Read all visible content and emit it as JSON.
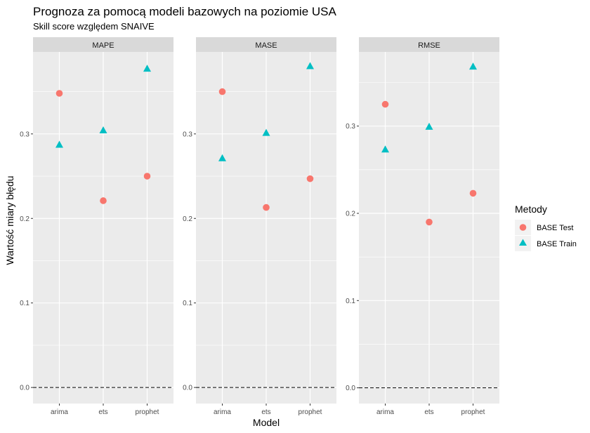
{
  "title": "Prognoza za pomocą modeli bazowych na poziomie USA",
  "subtitle": "Skill score względem SNAIVE",
  "xlabel": "Model",
  "ylabel": "Wartość miary błędu",
  "legend": {
    "title": "Metody",
    "placement": "right",
    "entries": [
      {
        "label": "BASE Test",
        "shape": "circle",
        "color": "#F8766D"
      },
      {
        "label": "BASE Train",
        "shape": "triangle",
        "color": "#00BFC4"
      }
    ]
  },
  "chart_data": {
    "type": "scatter",
    "facets": [
      {
        "name": "MAPE",
        "categories": [
          "arima",
          "ets",
          "prophet"
        ],
        "ylim": [
          -0.019,
          0.397
        ],
        "yticks": [
          0.0,
          0.1,
          0.2,
          0.3
        ],
        "ytick_labels": [
          "0.0",
          "0.1",
          "0.2",
          "0.3"
        ],
        "series": [
          {
            "name": "BASE Test",
            "values": [
              0.348,
              0.221,
              0.25
            ]
          },
          {
            "name": "BASE Train",
            "values": [
              0.287,
              0.304,
              0.377
            ]
          }
        ],
        "reference_line": 0.0
      },
      {
        "name": "MASE",
        "categories": [
          "arima",
          "ets",
          "prophet"
        ],
        "ylim": [
          -0.019,
          0.397
        ],
        "yticks": [
          0.0,
          0.1,
          0.2,
          0.3
        ],
        "ytick_labels": [
          "0.0",
          "0.1",
          "0.2",
          "0.3"
        ],
        "series": [
          {
            "name": "BASE Test",
            "values": [
              0.35,
              0.213,
              0.247
            ]
          },
          {
            "name": "BASE Train",
            "values": [
              0.271,
              0.301,
              0.38
            ]
          }
        ],
        "reference_line": 0.0
      },
      {
        "name": "RMSE",
        "categories": [
          "arima",
          "ets",
          "prophet"
        ],
        "ylim": [
          -0.018,
          0.385
        ],
        "yticks": [
          0.0,
          0.1,
          0.2,
          0.3
        ],
        "ytick_labels": [
          "0.0",
          "0.1",
          "0.2",
          "0.3"
        ],
        "series": [
          {
            "name": "BASE Test",
            "values": [
              0.325,
              0.19,
              0.223
            ]
          },
          {
            "name": "BASE Train",
            "values": [
              0.273,
              0.299,
              0.368
            ]
          }
        ],
        "reference_line": 0.0
      }
    ],
    "grid": true,
    "colors": {
      "BASE Test": "#F8766D",
      "BASE Train": "#00BFC4",
      "panel": "#EBEBEB",
      "strip": "#D9D9D9"
    }
  }
}
